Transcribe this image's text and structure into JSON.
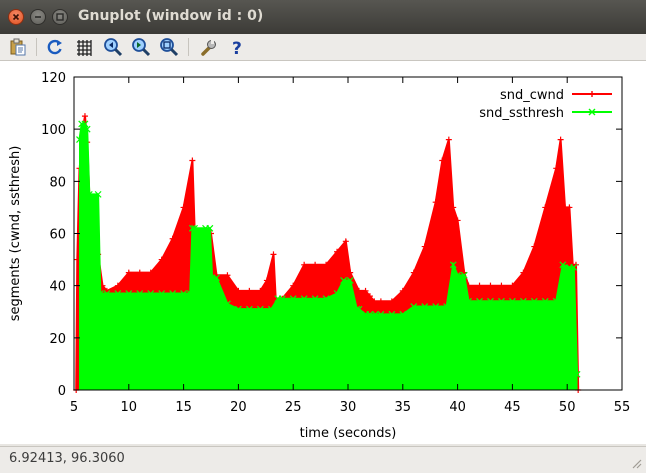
{
  "window": {
    "title": "Gnuplot (window id : 0)",
    "close_icon": "close-icon",
    "minimize_icon": "minimize-icon",
    "maximize_icon": "maximize-icon"
  },
  "toolbar": {
    "icons": [
      "copy-to-clipboard-icon",
      "replot-icon",
      "grid-icon",
      "zoom-previous-icon",
      "zoom-next-icon",
      "autoscale-icon",
      "settings-icon",
      "help-icon"
    ]
  },
  "status": {
    "coordinates": "6.92413,  96.3060"
  },
  "colors": {
    "snd_cwnd": "#ff0000",
    "snd_ssthresh": "#00ff00",
    "titlebar": "#3c3b37"
  },
  "chart_data": {
    "type": "line",
    "xlabel": "time (seconds)",
    "ylabel": "segments (cwnd, ssthresh)",
    "xlim": [
      5,
      55
    ],
    "ylim": [
      0,
      120
    ],
    "x_ticks": [
      5,
      10,
      15,
      20,
      25,
      30,
      35,
      40,
      45,
      50,
      55
    ],
    "y_ticks": [
      0,
      20,
      40,
      60,
      80,
      100,
      120
    ],
    "legend_position": "top-right",
    "grid": false,
    "series": [
      {
        "name": "snd_cwnd",
        "color": "#ff0000",
        "marker": "+",
        "points": [
          [
            5.2,
            0
          ],
          [
            5.3,
            50
          ],
          [
            5.5,
            85
          ],
          [
            5.6,
            60
          ],
          [
            5.8,
            100
          ],
          [
            6.0,
            105
          ],
          [
            6.2,
            95
          ],
          [
            6.4,
            75
          ],
          [
            6.8,
            60
          ],
          [
            7.2,
            52
          ],
          [
            7.6,
            40
          ],
          [
            8,
            38
          ],
          [
            9,
            40
          ],
          [
            10,
            45
          ],
          [
            11,
            45
          ],
          [
            12,
            45
          ],
          [
            13,
            50
          ],
          [
            14,
            58
          ],
          [
            15,
            70
          ],
          [
            15.8,
            88
          ],
          [
            16,
            62
          ],
          [
            17,
            61
          ],
          [
            17.5,
            60
          ],
          [
            18,
            44
          ],
          [
            19,
            44
          ],
          [
            20,
            38
          ],
          [
            21,
            38
          ],
          [
            22,
            38
          ],
          [
            22.6,
            42
          ],
          [
            23.2,
            52
          ],
          [
            23.4,
            35
          ],
          [
            24,
            35
          ],
          [
            25,
            40
          ],
          [
            26,
            48
          ],
          [
            27,
            48
          ],
          [
            28,
            48
          ],
          [
            29,
            53
          ],
          [
            29.8,
            57
          ],
          [
            30.2,
            45
          ],
          [
            31,
            38
          ],
          [
            31.6,
            38
          ],
          [
            32,
            36
          ],
          [
            32.4,
            34
          ],
          [
            33,
            34
          ],
          [
            34,
            34
          ],
          [
            35,
            38
          ],
          [
            36,
            45
          ],
          [
            37,
            55
          ],
          [
            38,
            72
          ],
          [
            38.6,
            88
          ],
          [
            39.2,
            96
          ],
          [
            39.6,
            70
          ],
          [
            40,
            65
          ],
          [
            40.6,
            45
          ],
          [
            41,
            40
          ],
          [
            42,
            40
          ],
          [
            43,
            40
          ],
          [
            44,
            40
          ],
          [
            45,
            40
          ],
          [
            46,
            45
          ],
          [
            47,
            55
          ],
          [
            48,
            70
          ],
          [
            49,
            85
          ],
          [
            49.4,
            96
          ],
          [
            49.8,
            70
          ],
          [
            50.2,
            70
          ],
          [
            50.5,
            48
          ],
          [
            50.8,
            48
          ],
          [
            51,
            0
          ]
        ]
      },
      {
        "name": "snd_ssthresh",
        "color": "#00ff00",
        "marker": "x",
        "points": [
          [
            5.5,
            96
          ],
          [
            5.7,
            102
          ],
          [
            6.0,
            102
          ],
          [
            6.2,
            100
          ],
          [
            6.4,
            75
          ],
          [
            7.2,
            75
          ],
          [
            7.4,
            37
          ],
          [
            8,
            37
          ],
          [
            9,
            37
          ],
          [
            10,
            37
          ],
          [
            11,
            37
          ],
          [
            12,
            37
          ],
          [
            13,
            37
          ],
          [
            14,
            37
          ],
          [
            15,
            37
          ],
          [
            15.6,
            37
          ],
          [
            15.8,
            62
          ],
          [
            16,
            62
          ],
          [
            17,
            62
          ],
          [
            17.4,
            62
          ],
          [
            17.6,
            43
          ],
          [
            18,
            43
          ],
          [
            19,
            33
          ],
          [
            20,
            31
          ],
          [
            21,
            31
          ],
          [
            22,
            31
          ],
          [
            23,
            31
          ],
          [
            23.6,
            35
          ],
          [
            24,
            35
          ],
          [
            25,
            35
          ],
          [
            26,
            35
          ],
          [
            27,
            35
          ],
          [
            28,
            35
          ],
          [
            29,
            37
          ],
          [
            29.6,
            42
          ],
          [
            30.2,
            42
          ],
          [
            30.8,
            31
          ],
          [
            31,
            31
          ],
          [
            31.6,
            29
          ],
          [
            32,
            29
          ],
          [
            32.5,
            29
          ],
          [
            33,
            29
          ],
          [
            34,
            29
          ],
          [
            35,
            29
          ],
          [
            36,
            32
          ],
          [
            37,
            32
          ],
          [
            38,
            32
          ],
          [
            39,
            32
          ],
          [
            39.6,
            48
          ],
          [
            40,
            44
          ],
          [
            40.6,
            44
          ],
          [
            41,
            34
          ],
          [
            42,
            34
          ],
          [
            43,
            34
          ],
          [
            44,
            34
          ],
          [
            45,
            34
          ],
          [
            46,
            34
          ],
          [
            47,
            34
          ],
          [
            48,
            34
          ],
          [
            49,
            34
          ],
          [
            49.6,
            48
          ],
          [
            50.2,
            47
          ],
          [
            50.6,
            47
          ],
          [
            50.9,
            6
          ]
        ]
      }
    ]
  }
}
